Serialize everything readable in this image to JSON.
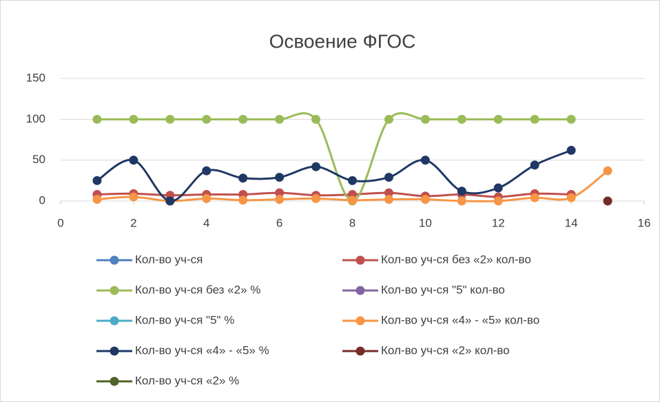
{
  "chart_data": {
    "type": "scatter-smooth",
    "title": "Освоение ФГОС",
    "x": [
      1,
      2,
      3,
      4,
      5,
      6,
      7,
      8,
      9,
      10,
      11,
      12,
      13,
      14,
      15
    ],
    "xlim": [
      0,
      16
    ],
    "xticks": [
      0,
      2,
      4,
      6,
      8,
      10,
      12,
      14,
      16
    ],
    "ylim": [
      0,
      150
    ],
    "yticks": [
      0,
      50,
      100,
      150
    ],
    "grid": true,
    "legend": "bottom",
    "series": [
      {
        "name": "Кол-во уч-ся",
        "color": "#4f81bd",
        "values": [
          null,
          null,
          null,
          null,
          null,
          null,
          null,
          null,
          null,
          null,
          null,
          null,
          null,
          null,
          null
        ]
      },
      {
        "name": "Кол-во уч-ся без «2» кол-во",
        "color": "#c0504d",
        "values": [
          8,
          9,
          7,
          8,
          8,
          10,
          7,
          8,
          10,
          6,
          8,
          5,
          9,
          8,
          null
        ]
      },
      {
        "name": "Кол-во уч-ся без «2» %",
        "color": "#9bbb59",
        "values": [
          100,
          100,
          100,
          100,
          100,
          100,
          100,
          0,
          100,
          100,
          100,
          100,
          100,
          100,
          null
        ]
      },
      {
        "name": "Кол-во уч-ся \"5\" кол-во",
        "color": "#8064a2",
        "values": [
          null,
          null,
          null,
          null,
          null,
          null,
          null,
          null,
          null,
          null,
          null,
          null,
          null,
          null,
          null
        ]
      },
      {
        "name": "Кол-во уч-ся \"5\" %",
        "color": "#4bacc6",
        "values": [
          null,
          null,
          null,
          null,
          null,
          null,
          null,
          null,
          null,
          null,
          null,
          null,
          null,
          null,
          null
        ]
      },
      {
        "name": "Кол-во уч-ся «4» - «5» кол-во",
        "color": "#f79646",
        "values": [
          2,
          5,
          0,
          3,
          1,
          2,
          3,
          1,
          2,
          2,
          0,
          0,
          4,
          4,
          37
        ]
      },
      {
        "name": "Кол-во уч-ся «4» - «5» %",
        "color": "#1f3864",
        "values": [
          25,
          50,
          0,
          37,
          28,
          29,
          42,
          25,
          29,
          50,
          12,
          16,
          44,
          62,
          null
        ]
      },
      {
        "name": "Кол-во уч-ся «2» кол-во",
        "color": "#772c2a",
        "values": [
          null,
          null,
          null,
          null,
          null,
          null,
          null,
          null,
          null,
          null,
          null,
          null,
          null,
          null,
          0
        ]
      },
      {
        "name": "Кол-во уч-ся «2» %",
        "color": "#4f6228",
        "values": [
          null,
          null,
          null,
          null,
          null,
          null,
          null,
          null,
          null,
          null,
          null,
          null,
          null,
          null,
          null
        ]
      }
    ]
  }
}
